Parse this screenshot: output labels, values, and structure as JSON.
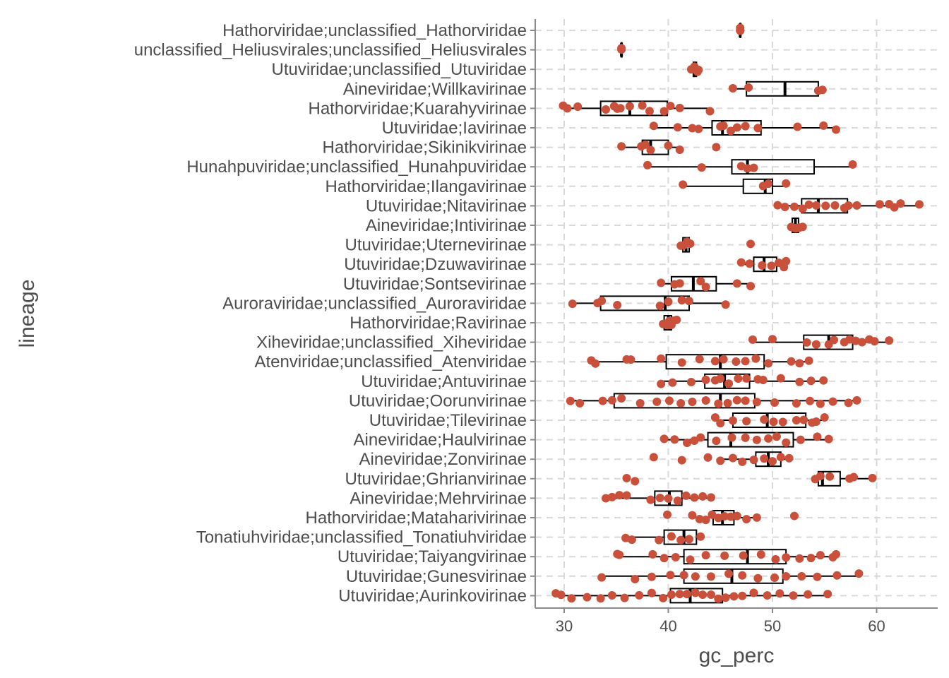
{
  "colors": {
    "point": "#c9503a",
    "box": "#000000",
    "grid": "#d9d9d9",
    "axis": "#8a8a8a",
    "text": "#4d4d4d"
  },
  "chart_data": {
    "type": "boxplot",
    "orientation": "horizontal",
    "xlabel": "gc_perc",
    "ylabel": "lineage",
    "xlim": [
      28,
      64.5
    ],
    "xticks": [
      30,
      40,
      50,
      60
    ],
    "grid": true,
    "legend": "none",
    "categories": [
      "Hathorviridae;unclassified_Hathorviridae",
      "unclassified_Heliusvirales;unclassified_Heliusvirales",
      "Utuviridae;unclassified_Utuviridae",
      "Aineviridae;Willkavirinae",
      "Hathorviridae;Kuarahyvirinae",
      "Utuviridae;Iavirinae",
      "Hathorviridae;Sikinikvirinae",
      "Hunahpuviridae;unclassified_Hunahpuviridae",
      "Hathorviridae;Ilangavirinae",
      "Utuviridae;Nitavirinae",
      "Aineviridae;Intivirinae",
      "Utuviridae;Uternevirinae",
      "Utuviridae;Dzuwavirinae",
      "Utuviridae;Sontsevirinae",
      "Auroraviridae;unclassified_Auroraviridae",
      "Hathorviridae;Ravirinae",
      "Xiheviridae;unclassified_Xiheviridae",
      "Atenviridae;unclassified_Atenviridae",
      "Utuviridae;Antuvirinae",
      "Utuviridae;Oorunvirinae",
      "Utuviridae;Tilevirinae",
      "Aineviridae;Haulvirinae",
      "Aineviridae;Zonvirinae",
      "Utuviridae;Ghrianvirinae",
      "Aineviridae;Mehrvirinae",
      "Hathorviridae;Mataharivirinae",
      "Tonatiuhviridae;unclassified_Tonatiuhviridae",
      "Utuviridae;Taiyangvirinae",
      "Utuviridae;Gunesvirinae",
      "Utuviridae;Aurinkovirinae"
    ],
    "boxes": [
      {
        "min": 46.9,
        "q1": 46.9,
        "median": 46.9,
        "q3": 46.9,
        "max": 46.9
      },
      {
        "min": 35.5,
        "q1": 35.5,
        "median": 35.5,
        "q3": 35.5,
        "max": 35.5
      },
      {
        "min": 42.3,
        "q1": 42.4,
        "median": 42.6,
        "q3": 42.7,
        "max": 42.8
      },
      {
        "min": 46.2,
        "q1": 47.5,
        "median": 51.2,
        "q3": 54.4,
        "max": 54.8
      },
      {
        "min": 30.2,
        "q1": 33.5,
        "median": 36.3,
        "q3": 39.9,
        "max": 44.0
      },
      {
        "min": 38.6,
        "q1": 44.2,
        "median": 45.2,
        "q3": 48.9,
        "max": 56.1
      },
      {
        "min": 35.5,
        "q1": 37.5,
        "median": 38.3,
        "q3": 40.0,
        "max": 41.1
      },
      {
        "min": 38.0,
        "q1": 46.1,
        "median": 47.6,
        "q3": 54.0,
        "max": 57.7
      },
      {
        "min": 41.4,
        "q1": 47.2,
        "median": 49.3,
        "q3": 50.0,
        "max": 51.3
      },
      {
        "min": 50.5,
        "q1": 52.8,
        "median": 54.4,
        "q3": 57.2,
        "max": 64.1
      },
      {
        "min": 51.7,
        "q1": 51.9,
        "median": 52.2,
        "q3": 52.5,
        "max": 53.0
      },
      {
        "min": 41.1,
        "q1": 41.4,
        "median": 41.7,
        "q3": 42.0,
        "max": 42.3
      },
      {
        "min": 46.9,
        "q1": 48.2,
        "median": 49.2,
        "q3": 50.4,
        "max": 51.3
      },
      {
        "min": 39.2,
        "q1": 40.3,
        "median": 42.4,
        "q3": 44.6,
        "max": 48.0
      },
      {
        "min": 30.8,
        "q1": 33.5,
        "median": 39.7,
        "q3": 42.0,
        "max": 45.4
      },
      {
        "min": 39.3,
        "q1": 39.6,
        "median": 40.0,
        "q3": 40.3,
        "max": 40.9
      },
      {
        "min": 48.1,
        "q1": 53.0,
        "median": 55.4,
        "q3": 57.7,
        "max": 61.2
      },
      {
        "min": 32.6,
        "q1": 39.8,
        "median": 45.0,
        "q3": 49.2,
        "max": 53.4
      },
      {
        "min": 39.3,
        "q1": 43.5,
        "median": 45.4,
        "q3": 47.8,
        "max": 55.0
      },
      {
        "min": 30.6,
        "q1": 34.8,
        "median": 45.0,
        "q3": 48.3,
        "max": 58.1
      },
      {
        "min": 44.4,
        "q1": 46.2,
        "median": 49.5,
        "q3": 53.2,
        "max": 55.0
      },
      {
        "min": 39.6,
        "q1": 43.8,
        "median": 46.0,
        "q3": 52.0,
        "max": 55.4
      },
      {
        "min": 45.2,
        "q1": 48.4,
        "median": 49.6,
        "q3": 50.8,
        "max": 52.0
      },
      {
        "min": 54.0,
        "q1": 54.4,
        "median": 54.8,
        "q3": 56.5,
        "max": 59.6
      },
      {
        "min": 34.0,
        "q1": 38.7,
        "median": 40.1,
        "q3": 41.3,
        "max": 44.1
      },
      {
        "min": 42.2,
        "q1": 44.3,
        "median": 45.2,
        "q3": 46.3,
        "max": 48.5
      },
      {
        "min": 35.8,
        "q1": 39.6,
        "median": 41.5,
        "q3": 42.7,
        "max": 42.8
      },
      {
        "min": 35.1,
        "q1": 41.5,
        "median": 47.6,
        "q3": 51.3,
        "max": 56.1
      },
      {
        "min": 33.6,
        "q1": 41.5,
        "median": 46.1,
        "q3": 51.0,
        "max": 58.3
      },
      {
        "min": 29.5,
        "q1": 40.2,
        "median": 42.1,
        "q3": 45.2,
        "max": 55.3
      }
    ],
    "points": [
      [
        46.9,
        46.9,
        46.9
      ],
      [
        35.5,
        35.5
      ],
      [
        42.2,
        42.5,
        42.8,
        42.9
      ],
      [
        46.2,
        47.7,
        54.4,
        54.8
      ],
      [
        29.9,
        30.3,
        31.3,
        34.0,
        34.8,
        35.1,
        35.4,
        36.3,
        37.5,
        38.2,
        39.6,
        40.2,
        41.1,
        44.0
      ],
      [
        38.6,
        40.9,
        42.3,
        42.9,
        45.0,
        45.3,
        46.0,
        46.6,
        47.4,
        48.6,
        52.4,
        54.9,
        56.1
      ],
      [
        35.5,
        37.4,
        37.8,
        38.3,
        40.0,
        41.1,
        44.6
      ],
      [
        38.0,
        43.2,
        47.0,
        47.6,
        48.2,
        57.7
      ],
      [
        41.4,
        49.1,
        49.6,
        51.3
      ],
      [
        50.5,
        51.2,
        52.1,
        52.9,
        53.5,
        54.2,
        55.1,
        56.0,
        56.9,
        57.3,
        58.1,
        60.3,
        61.2,
        61.7,
        62.3,
        64.1
      ],
      [
        51.8,
        52.0,
        52.2,
        52.4,
        52.6,
        52.9
      ],
      [
        41.2,
        41.5,
        41.8,
        42.1,
        47.9
      ],
      [
        47.0,
        47.8,
        49.0,
        49.9,
        50.6,
        51.1,
        51.3
      ],
      [
        39.3,
        40.6,
        41.1,
        43.1,
        43.6,
        46.6,
        47.9
      ],
      [
        30.8,
        33.2,
        33.6,
        35.1,
        39.2,
        40.0,
        41.3,
        42.0,
        45.5
      ],
      [
        39.5,
        39.7,
        39.9,
        40.1,
        40.3,
        40.5,
        40.8
      ],
      [
        48.1,
        50.0,
        53.3,
        54.2,
        55.4,
        55.9,
        56.9,
        57.4,
        58.0,
        58.6,
        59.3,
        59.8,
        61.2
      ],
      [
        32.6,
        33.0,
        36.0,
        36.4,
        39.3,
        41.3,
        43.0,
        44.5,
        45.3,
        46.5,
        47.4,
        48.4,
        49.6,
        51.8,
        52.6,
        53.5
      ],
      [
        39.3,
        40.4,
        42.2,
        43.6,
        44.5,
        45.0,
        45.8,
        46.7,
        47.5,
        48.6,
        49.1,
        50.8,
        52.6,
        53.7,
        54.9
      ],
      [
        30.6,
        31.5,
        33.7,
        34.6,
        35.5,
        37.3,
        38.9,
        40.1,
        41.2,
        42.3,
        43.6,
        44.8,
        45.7,
        46.6,
        47.4,
        48.5,
        50.2,
        52.3,
        53.6,
        54.6,
        55.8,
        57.3,
        58.1
      ],
      [
        44.5,
        45.0,
        46.2,
        47.5,
        49.2,
        50.1,
        51.0,
        52.3,
        53.0,
        53.8,
        54.2,
        55.0
      ],
      [
        39.6,
        40.6,
        41.8,
        42.5,
        43.1,
        44.6,
        46.1,
        47.4,
        48.5,
        49.6,
        50.4,
        51.3,
        52.7,
        54.3,
        55.4
      ],
      [
        38.6,
        41.3,
        43.8,
        45.0,
        46.2,
        47.1,
        48.2,
        49.2,
        50.0,
        50.8,
        51.6
      ],
      [
        36.0,
        36.8,
        54.1,
        54.6,
        55.5,
        57.4,
        57.8,
        59.6
      ],
      [
        34.0,
        34.6,
        35.3,
        36.0,
        38.3,
        39.2,
        40.0,
        40.9,
        41.7,
        42.5,
        43.3,
        44.1
      ],
      [
        39.9,
        42.3,
        43.0,
        43.6,
        44.2,
        44.8,
        45.4,
        46.0,
        46.6,
        47.5,
        48.5,
        52.1
      ],
      [
        35.9,
        36.5,
        39.1,
        40.3,
        41.2,
        42.0,
        43.1
      ],
      [
        35.1,
        35.3,
        38.5,
        39.6,
        40.7,
        42.1,
        43.6,
        45.4,
        47.2,
        48.9,
        50.3,
        51.3,
        52.6,
        53.7,
        54.6,
        55.8,
        56.1
      ],
      [
        33.6,
        36.8,
        38.4,
        40.2,
        41.5,
        42.6,
        44.1,
        45.8,
        47.1,
        48.6,
        50.2,
        51.3,
        52.8,
        54.3,
        56.2,
        58.3
      ],
      [
        29.2,
        29.7,
        30.7,
        32.2,
        33.5,
        34.6,
        35.8,
        37.2,
        38.4,
        39.5,
        40.3,
        41.1,
        41.8,
        42.6,
        43.3,
        44.1,
        44.8,
        45.5,
        46.3,
        47.1,
        48.2,
        49.5,
        50.7,
        52.0,
        53.4,
        55.3
      ]
    ]
  }
}
